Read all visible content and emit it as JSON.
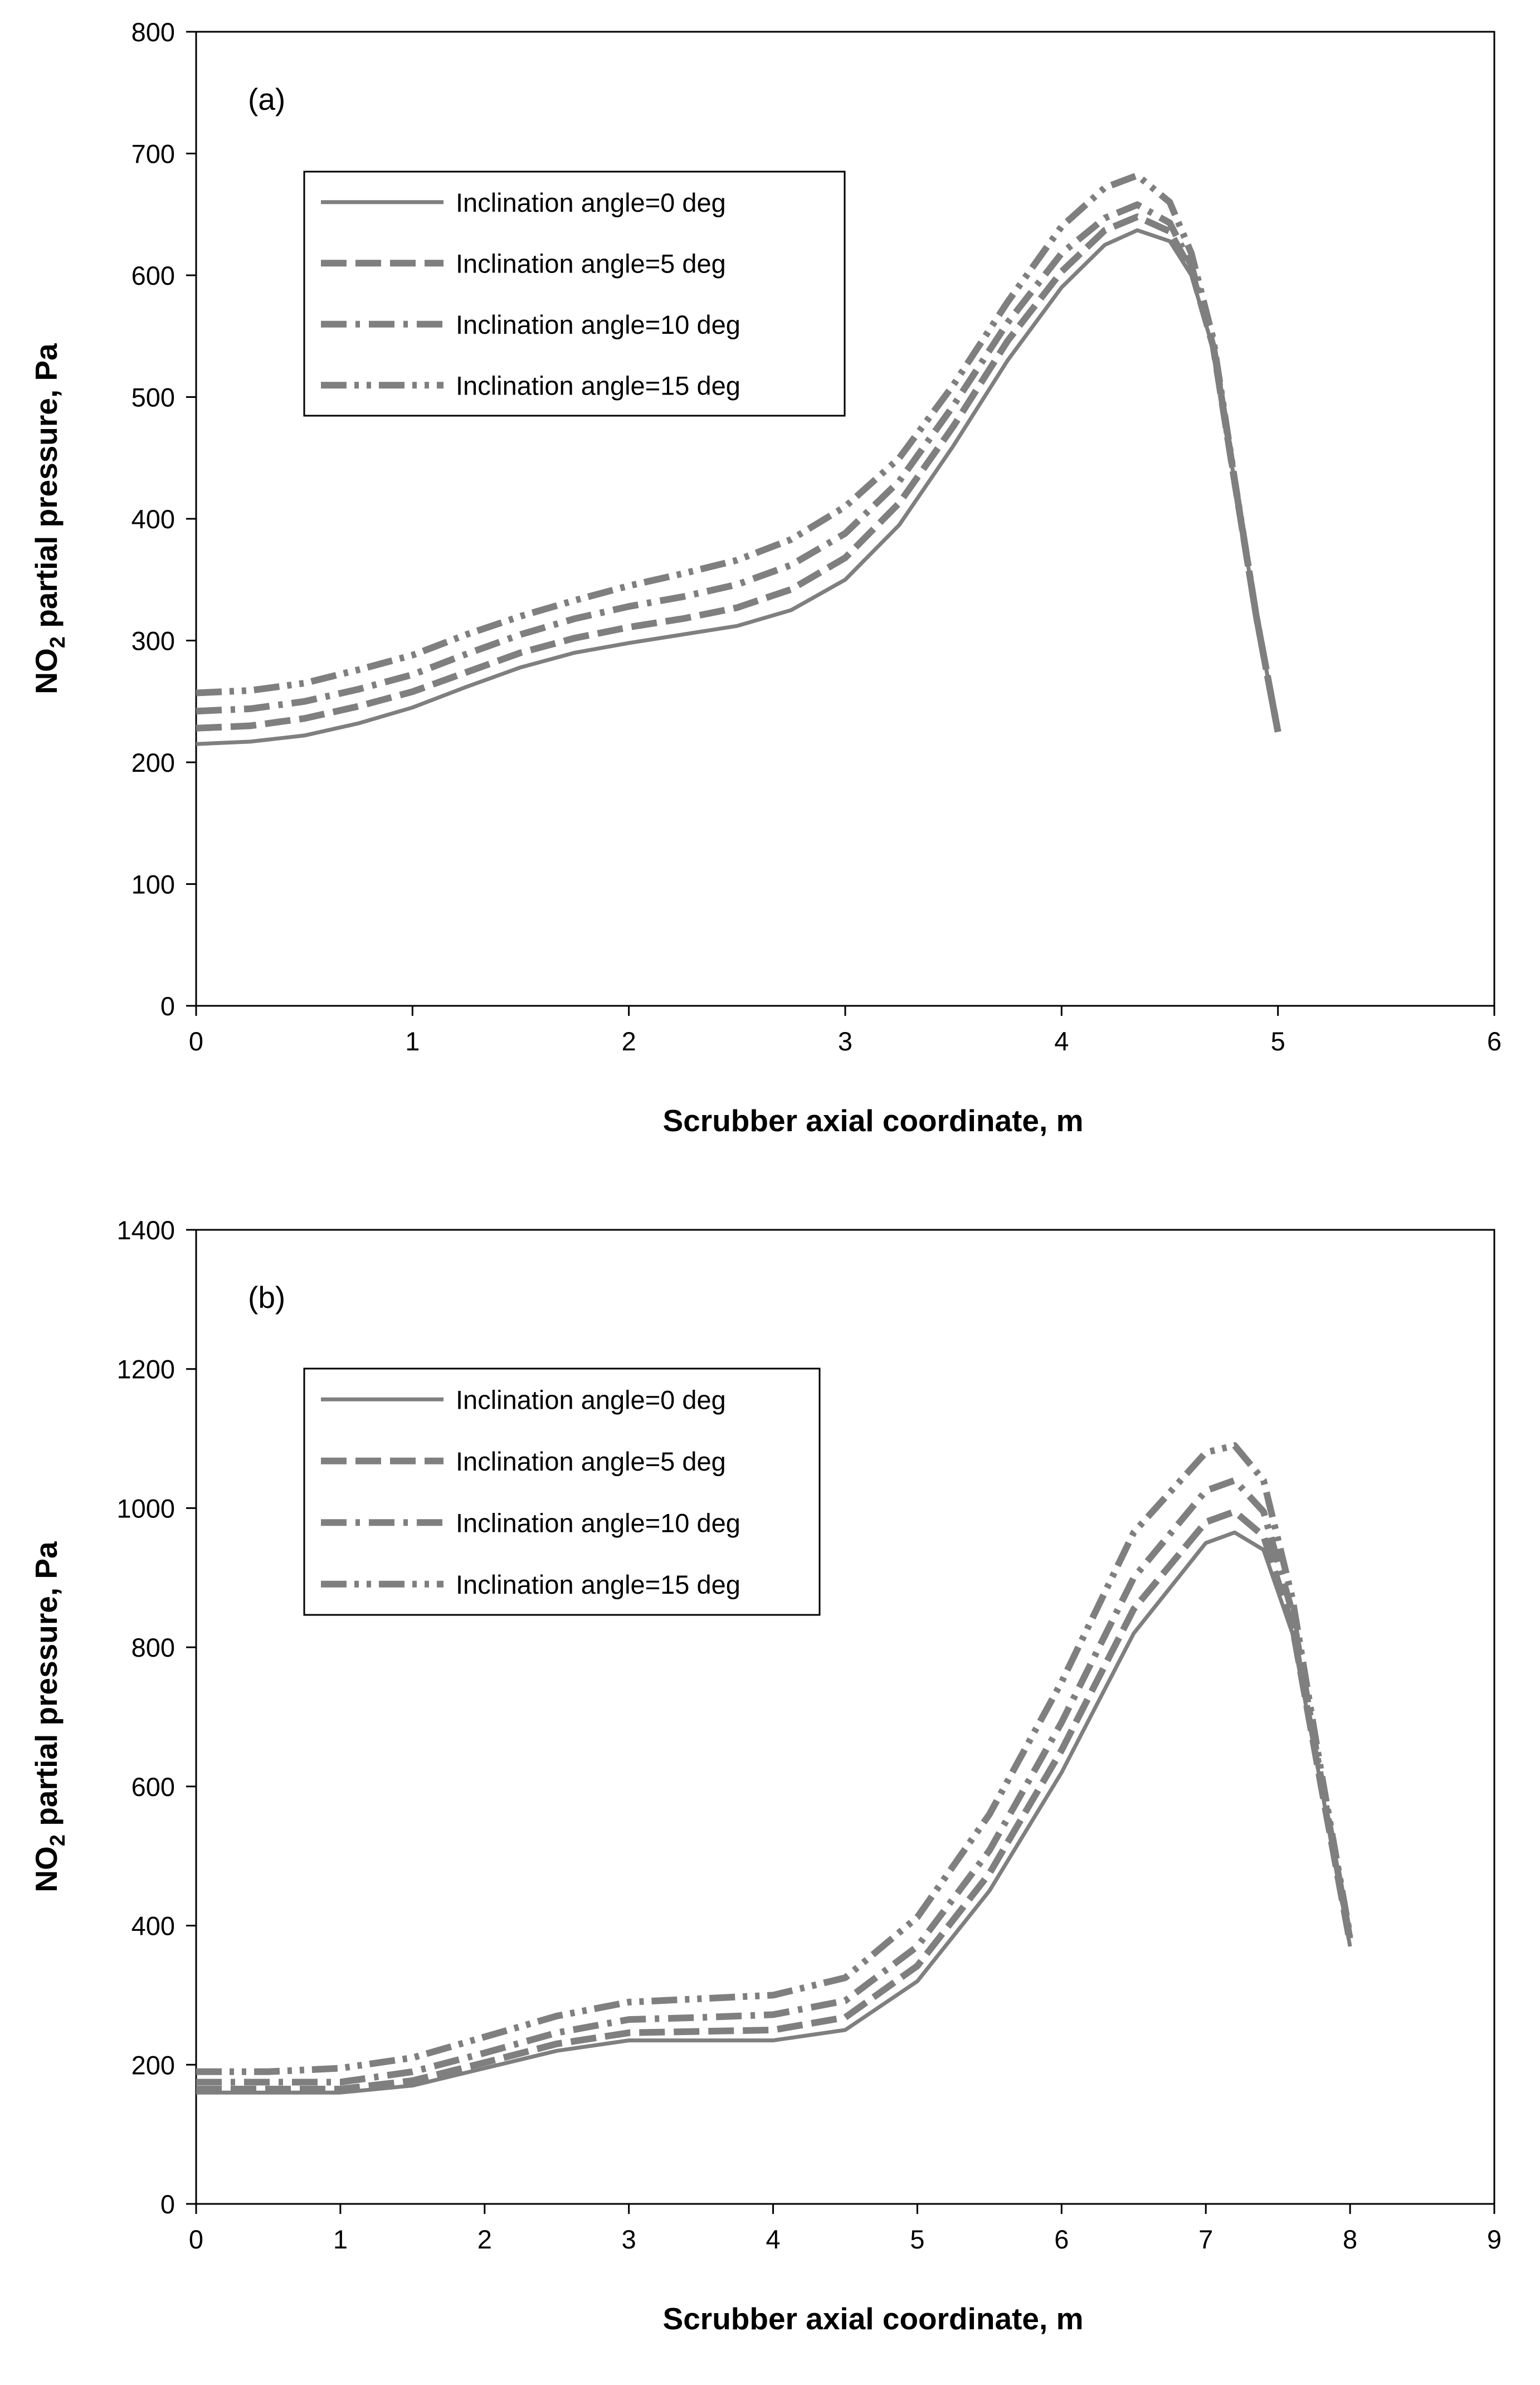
{
  "chart_data": [
    {
      "type": "line",
      "panel_label": "(a)",
      "xlabel": "Scrubber axial coordinate, m",
      "ylabel": "NO2 partial pressure, Pa",
      "ylabel_parts": {
        "pre": "NO",
        "sub": "2",
        "post": " partial pressure, Pa"
      },
      "xlim": [
        0,
        6
      ],
      "ylim": [
        0,
        800
      ],
      "xticks": [
        0,
        1,
        2,
        3,
        4,
        5,
        6
      ],
      "yticks": [
        0,
        100,
        200,
        300,
        400,
        500,
        600,
        700,
        800
      ],
      "grid": false,
      "legend_position": "top-left",
      "series": [
        {
          "name": "Inclination angle=0 deg",
          "style": "solid",
          "x": [
            0,
            0.25,
            0.5,
            0.75,
            1.0,
            1.25,
            1.5,
            1.75,
            2.0,
            2.25,
            2.5,
            2.75,
            3.0,
            3.25,
            3.5,
            3.75,
            4.0,
            4.2,
            4.35,
            4.5,
            4.6,
            4.7,
            4.8,
            4.9,
            5.0
          ],
          "y": [
            215,
            217,
            222,
            232,
            245,
            262,
            278,
            290,
            298,
            305,
            312,
            325,
            350,
            395,
            460,
            530,
            590,
            625,
            637,
            628,
            600,
            540,
            430,
            320,
            225
          ]
        },
        {
          "name": "Inclination angle=5 deg",
          "style": "dash",
          "x": [
            0,
            0.25,
            0.5,
            0.75,
            1.0,
            1.25,
            1.5,
            1.75,
            2.0,
            2.25,
            2.5,
            2.75,
            3.0,
            3.25,
            3.5,
            3.75,
            4.0,
            4.2,
            4.35,
            4.5,
            4.6,
            4.7,
            4.8,
            4.9,
            5.0
          ],
          "y": [
            228,
            230,
            236,
            246,
            258,
            274,
            290,
            302,
            311,
            318,
            327,
            342,
            368,
            413,
            476,
            546,
            603,
            637,
            648,
            636,
            604,
            542,
            430,
            320,
            225
          ]
        },
        {
          "name": "Inclination angle=10 deg",
          "style": "dashdot",
          "x": [
            0,
            0.25,
            0.5,
            0.75,
            1.0,
            1.25,
            1.5,
            1.75,
            2.0,
            2.25,
            2.5,
            2.75,
            3.0,
            3.25,
            3.5,
            3.75,
            4.0,
            4.2,
            4.35,
            4.5,
            4.6,
            4.7,
            4.8,
            4.9,
            5.0
          ],
          "y": [
            242,
            244,
            250,
            260,
            272,
            289,
            305,
            318,
            328,
            336,
            346,
            362,
            388,
            431,
            493,
            561,
            618,
            647,
            658,
            643,
            608,
            544,
            431,
            320,
            225
          ]
        },
        {
          "name": "Inclination angle=15 deg",
          "style": "dashdotdot",
          "x": [
            0,
            0.25,
            0.5,
            0.75,
            1.0,
            1.25,
            1.5,
            1.75,
            2.0,
            2.25,
            2.5,
            2.75,
            3.0,
            3.25,
            3.5,
            3.75,
            4.0,
            4.2,
            4.35,
            4.5,
            4.6,
            4.7,
            4.8,
            4.9,
            5.0
          ],
          "y": [
            257,
            259,
            265,
            276,
            288,
            305,
            320,
            333,
            345,
            355,
            366,
            383,
            410,
            450,
            510,
            578,
            640,
            672,
            682,
            660,
            618,
            548,
            432,
            320,
            225
          ]
        }
      ]
    },
    {
      "type": "line",
      "panel_label": "(b)",
      "xlabel": "Scrubber axial coordinate, m",
      "ylabel": "NO2 partial pressure, Pa",
      "ylabel_parts": {
        "pre": "NO",
        "sub": "2",
        "post": " partial pressure, Pa"
      },
      "xlim": [
        0,
        9
      ],
      "ylim": [
        0,
        1400
      ],
      "xticks": [
        0,
        1,
        2,
        3,
        4,
        5,
        6,
        7,
        8,
        9
      ],
      "yticks": [
        0,
        200,
        400,
        600,
        800,
        1000,
        1200,
        1400
      ],
      "grid": false,
      "legend_position": "top-left",
      "series": [
        {
          "name": "Inclination angle=0 deg",
          "style": "solid",
          "x": [
            0,
            0.5,
            1.0,
            1.5,
            2.0,
            2.5,
            3.0,
            3.5,
            4.0,
            4.5,
            5.0,
            5.5,
            6.0,
            6.5,
            7.0,
            7.2,
            7.4,
            7.6,
            7.8,
            8.0
          ],
          "y": [
            160,
            160,
            160,
            170,
            195,
            220,
            235,
            235,
            235,
            250,
            320,
            450,
            620,
            820,
            950,
            965,
            940,
            820,
            600,
            370
          ]
        },
        {
          "name": "Inclination angle=5 deg",
          "style": "dash",
          "x": [
            0,
            0.5,
            1.0,
            1.5,
            2.0,
            2.5,
            3.0,
            3.5,
            4.0,
            4.5,
            5.0,
            5.5,
            6.0,
            6.5,
            7.0,
            7.2,
            7.4,
            7.6,
            7.8,
            8.0
          ],
          "y": [
            165,
            165,
            165,
            177,
            203,
            230,
            246,
            248,
            250,
            268,
            342,
            475,
            652,
            855,
            980,
            995,
            960,
            830,
            600,
            375
          ]
        },
        {
          "name": "Inclination angle=10 deg",
          "style": "dashdot",
          "x": [
            0,
            0.5,
            1.0,
            1.5,
            2.0,
            2.5,
            3.0,
            3.5,
            4.0,
            4.5,
            5.0,
            5.5,
            6.0,
            6.5,
            7.0,
            7.2,
            7.4,
            7.6,
            7.8,
            8.0
          ],
          "y": [
            175,
            175,
            175,
            190,
            217,
            246,
            265,
            268,
            272,
            292,
            370,
            508,
            692,
            900,
            1025,
            1040,
            995,
            850,
            610,
            380
          ]
        },
        {
          "name": "Inclination angle=15 deg",
          "style": "dashdotdot",
          "x": [
            0,
            0.5,
            1.0,
            1.5,
            2.0,
            2.5,
            3.0,
            3.5,
            4.0,
            4.5,
            5.0,
            5.5,
            6.0,
            6.5,
            7.0,
            7.2,
            7.4,
            7.6,
            7.8,
            8.0
          ],
          "y": [
            190,
            190,
            195,
            210,
            240,
            270,
            290,
            295,
            300,
            325,
            412,
            560,
            750,
            965,
            1080,
            1090,
            1040,
            870,
            620,
            385
          ]
        }
      ]
    }
  ],
  "colors": {
    "series": "#7f7f7f",
    "axis": "#000000",
    "background": "#ffffff"
  }
}
